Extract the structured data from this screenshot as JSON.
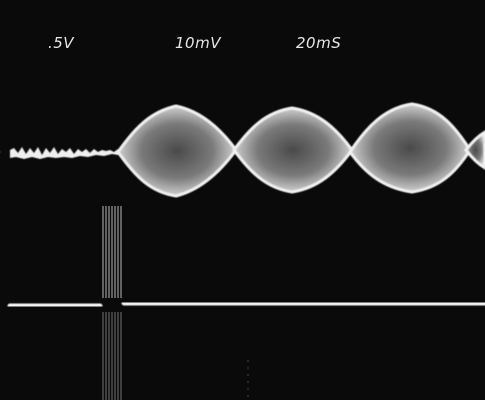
{
  "readouts": {
    "channel_1_scale": ".5V",
    "channel_2_scale": "10mV",
    "timebase": "20mS"
  },
  "colors": {
    "screen": "#0a0a0a",
    "trace": "#f2f2f2",
    "envelope_dark": "#5a5a5a",
    "graticule": "#6e6e6e"
  }
}
